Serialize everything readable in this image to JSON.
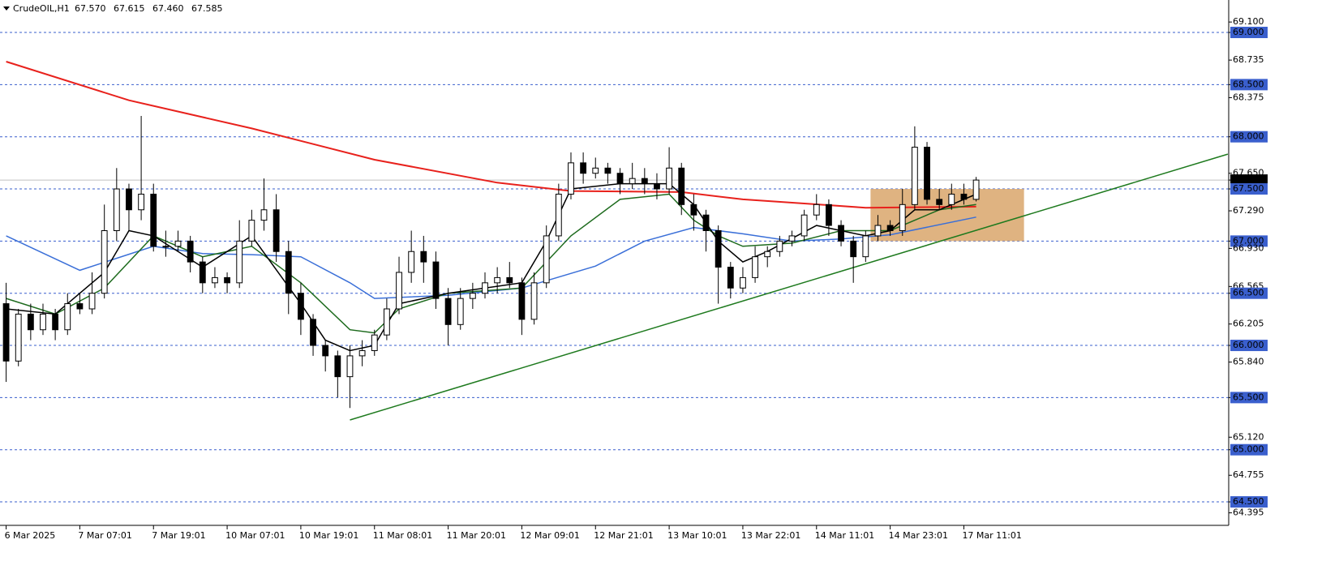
{
  "chart_data": {
    "type": "candlestick",
    "header": {
      "symbol": "CrudeOIL,H1",
      "values": [
        67.57,
        67.615,
        67.46,
        67.585
      ],
      "value_labels": [
        "67.570",
        "67.615",
        "67.460",
        "67.585"
      ]
    },
    "categories": [
      "6 Mar 2025",
      null,
      null,
      null,
      null,
      null,
      "7 Mar 07:01",
      null,
      null,
      null,
      null,
      null,
      "7 Mar 19:01",
      null,
      null,
      null,
      null,
      null,
      "10 Mar 07:01",
      null,
      null,
      null,
      null,
      null,
      "10 Mar 19:01",
      null,
      null,
      null,
      null,
      null,
      "11 Mar 08:01",
      null,
      null,
      null,
      null,
      null,
      "11 Mar 20:01",
      null,
      null,
      null,
      null,
      null,
      "12 Mar 09:01",
      null,
      null,
      null,
      null,
      null,
      "12 Mar 21:01",
      null,
      null,
      null,
      null,
      null,
      "13 Mar 10:01",
      null,
      null,
      null,
      null,
      null,
      "13 Mar 22:01",
      null,
      null,
      null,
      null,
      null,
      "14 Mar 11:01",
      null,
      null,
      null,
      null,
      null,
      "14 Mar 23:01",
      null,
      null,
      null,
      null,
      null,
      "17 Mar 11:01",
      null
    ],
    "open": [
      66.4,
      65.85,
      66.3,
      66.15,
      66.3,
      66.15,
      66.4,
      66.35,
      66.5,
      67.1,
      67.5,
      67.3,
      67.45,
      66.95,
      66.95,
      67.0,
      66.8,
      66.6,
      66.65,
      66.6,
      67.0,
      67.2,
      67.3,
      66.9,
      66.5,
      66.25,
      66.0,
      65.9,
      65.7,
      65.9,
      65.95,
      66.1,
      66.35,
      66.7,
      66.9,
      66.8,
      66.45,
      66.2,
      66.45,
      66.5,
      66.6,
      66.65,
      66.6,
      66.25,
      66.6,
      67.05,
      67.45,
      67.75,
      67.65,
      67.7,
      67.65,
      67.55,
      67.6,
      67.55,
      67.5,
      67.7,
      67.35,
      67.25,
      67.1,
      66.75,
      66.55,
      66.65,
      66.85,
      66.9,
      67.0,
      67.05,
      67.25,
      67.35,
      67.15,
      67.0,
      66.85,
      67.05,
      67.15,
      67.1,
      67.35,
      67.9,
      67.4,
      67.35,
      67.45,
      67.4
    ],
    "high": [
      66.6,
      66.35,
      66.4,
      66.4,
      66.35,
      66.5,
      66.5,
      66.7,
      67.35,
      67.7,
      67.55,
      68.2,
      67.55,
      67.1,
      67.1,
      67.05,
      66.85,
      66.75,
      66.7,
      67.2,
      67.3,
      67.6,
      67.45,
      67.0,
      66.6,
      66.3,
      66.05,
      65.95,
      66.0,
      66.05,
      66.15,
      66.45,
      66.85,
      67.1,
      67.05,
      66.9,
      66.55,
      66.55,
      66.6,
      66.7,
      66.75,
      66.8,
      66.65,
      66.7,
      67.15,
      67.55,
      67.85,
      67.85,
      67.8,
      67.75,
      67.7,
      67.75,
      67.7,
      67.65,
      67.9,
      67.75,
      67.45,
      67.3,
      67.15,
      66.8,
      66.75,
      66.95,
      66.95,
      67.05,
      67.1,
      67.3,
      67.45,
      67.4,
      67.2,
      67.05,
      67.1,
      67.25,
      67.2,
      67.5,
      68.1,
      67.95,
      67.5,
      67.55,
      67.55,
      67.615
    ],
    "low": [
      65.65,
      65.8,
      66.05,
      66.1,
      66.05,
      66.1,
      66.3,
      66.3,
      66.45,
      67.0,
      67.1,
      67.2,
      66.9,
      66.85,
      66.9,
      66.7,
      66.5,
      66.55,
      66.5,
      66.55,
      66.95,
      67.1,
      66.8,
      66.3,
      66.1,
      65.9,
      65.75,
      65.5,
      65.4,
      65.8,
      65.9,
      66.05,
      66.3,
      66.6,
      66.6,
      66.35,
      66.0,
      66.15,
      66.35,
      66.45,
      66.5,
      66.55,
      66.1,
      66.2,
      66.55,
      67.0,
      67.4,
      67.55,
      67.6,
      67.55,
      67.45,
      67.5,
      67.45,
      67.4,
      67.45,
      67.25,
      67.1,
      66.9,
      66.4,
      66.45,
      66.5,
      66.6,
      66.75,
      66.85,
      66.95,
      67.0,
      67.2,
      67.05,
      66.95,
      66.6,
      66.8,
      67.0,
      67.05,
      67.05,
      67.3,
      67.35,
      67.3,
      67.3,
      67.35,
      67.38
    ],
    "close": [
      65.85,
      66.3,
      66.15,
      66.3,
      66.15,
      66.4,
      66.35,
      66.5,
      67.1,
      67.5,
      67.3,
      67.45,
      66.95,
      66.95,
      67.0,
      66.8,
      66.6,
      66.65,
      66.6,
      67.0,
      67.2,
      67.3,
      66.9,
      66.5,
      66.25,
      66.0,
      65.9,
      65.7,
      65.9,
      65.95,
      66.1,
      66.35,
      66.7,
      66.9,
      66.8,
      66.45,
      66.2,
      66.45,
      66.5,
      66.6,
      66.65,
      66.6,
      66.25,
      66.6,
      67.05,
      67.45,
      67.75,
      67.65,
      67.7,
      67.65,
      67.55,
      67.6,
      67.55,
      67.5,
      67.7,
      67.35,
      67.25,
      67.1,
      66.75,
      66.55,
      66.65,
      66.85,
      66.9,
      67.0,
      67.05,
      67.25,
      67.35,
      67.15,
      67.0,
      66.85,
      67.05,
      67.15,
      67.1,
      67.35,
      67.9,
      67.4,
      67.35,
      67.45,
      67.4,
      67.585
    ],
    "up_color": "#ffffff",
    "down_color": "#000000",
    "edge_color": "#000000",
    "lines": [
      {
        "color": "#e8211c",
        "x": [
          0,
          10,
          20,
          30,
          40,
          46,
          55,
          60,
          65,
          70,
          79
        ],
        "values": [
          68.72,
          68.35,
          68.08,
          67.78,
          67.56,
          67.48,
          67.47,
          67.4,
          67.36,
          67.32,
          67.33
        ]
      },
      {
        "color": "#3a6fd8",
        "x": [
          0,
          6,
          12,
          16,
          20,
          24,
          28,
          30,
          36,
          42,
          48,
          52,
          56,
          60,
          64,
          68,
          72,
          79
        ],
        "values": [
          67.05,
          66.72,
          66.95,
          66.88,
          66.87,
          66.85,
          66.6,
          66.45,
          66.48,
          66.55,
          66.76,
          67.0,
          67.13,
          67.07,
          67.0,
          67.02,
          67.06,
          67.23
        ]
      },
      {
        "color": "#1e6b1e",
        "x": [
          0,
          4,
          8,
          12,
          16,
          20,
          24,
          28,
          30,
          32,
          36,
          42,
          46,
          50,
          54,
          56,
          58,
          60,
          64,
          68,
          72,
          76,
          79
        ],
        "values": [
          66.45,
          66.3,
          66.55,
          67.05,
          66.85,
          66.95,
          66.6,
          66.15,
          66.12,
          66.35,
          66.5,
          66.55,
          67.05,
          67.4,
          67.45,
          67.2,
          67.05,
          66.95,
          66.98,
          67.1,
          67.1,
          67.3,
          67.35
        ]
      },
      {
        "color": "#000000",
        "x": [
          0,
          4,
          8,
          10,
          12,
          16,
          20,
          24,
          26,
          28,
          30,
          32,
          36,
          42,
          44,
          46,
          50,
          54,
          56,
          58,
          60,
          62,
          66,
          68,
          70,
          72,
          74,
          76,
          79
        ],
        "values": [
          66.35,
          66.3,
          66.7,
          67.1,
          67.05,
          66.75,
          67.05,
          66.4,
          66.05,
          65.95,
          66.0,
          66.4,
          66.5,
          66.6,
          67.0,
          67.5,
          67.55,
          67.55,
          67.35,
          67.0,
          66.8,
          66.9,
          67.15,
          67.1,
          67.05,
          67.1,
          67.3,
          67.3,
          67.45
        ]
      }
    ],
    "trendline": {
      "color": "#1e7a1e",
      "x": [
        28,
        99.5
      ],
      "values": [
        65.285,
        67.834
      ]
    },
    "box": {
      "color": "#d9a66b",
      "x": [
        70.4,
        82.9
      ],
      "y": [
        67.0,
        67.5
      ]
    },
    "current_price": 67.585,
    "xlim": [
      -0.5,
      99.57
    ],
    "ylim": [
      64.275,
      69.311
    ],
    "yticks": [
      {
        "value": 69.1,
        "label": "69.100"
      },
      {
        "value": 69.0,
        "label": "69.000",
        "boxed": true
      },
      {
        "value": 68.735,
        "label": "68.735"
      },
      {
        "value": 68.5,
        "label": "68.500",
        "boxed": true
      },
      {
        "value": 68.375,
        "label": "68.375"
      },
      {
        "value": 68.0,
        "label": "68.000",
        "boxed": true
      },
      {
        "value": 67.65,
        "label": "67.650"
      },
      {
        "value": 67.585,
        "label": "67.585",
        "current": true
      },
      {
        "value": 67.5,
        "label": "67.500",
        "boxed": true
      },
      {
        "value": 67.29,
        "label": "67.290"
      },
      {
        "value": 67.0,
        "label": "67.000",
        "boxed": true
      },
      {
        "value": 66.93,
        "label": "66.930"
      },
      {
        "value": 66.565,
        "label": "66.565"
      },
      {
        "value": 66.5,
        "label": "66.500",
        "boxed": true
      },
      {
        "value": 66.205,
        "label": "66.205"
      },
      {
        "value": 66.0,
        "label": "66.000",
        "boxed": true
      },
      {
        "value": 65.84,
        "label": "65.840"
      },
      {
        "value": 65.5,
        "label": "65.500",
        "boxed": true
      },
      {
        "value": 65.12,
        "label": "65.120"
      },
      {
        "value": 65.0,
        "label": "65.000",
        "boxed": true
      },
      {
        "value": 64.755,
        "label": "64.755"
      },
      {
        "value": 64.5,
        "label": "64.500",
        "boxed": true
      },
      {
        "value": 64.395,
        "label": "64.395"
      }
    ],
    "level_color": "#3a5fcd"
  }
}
